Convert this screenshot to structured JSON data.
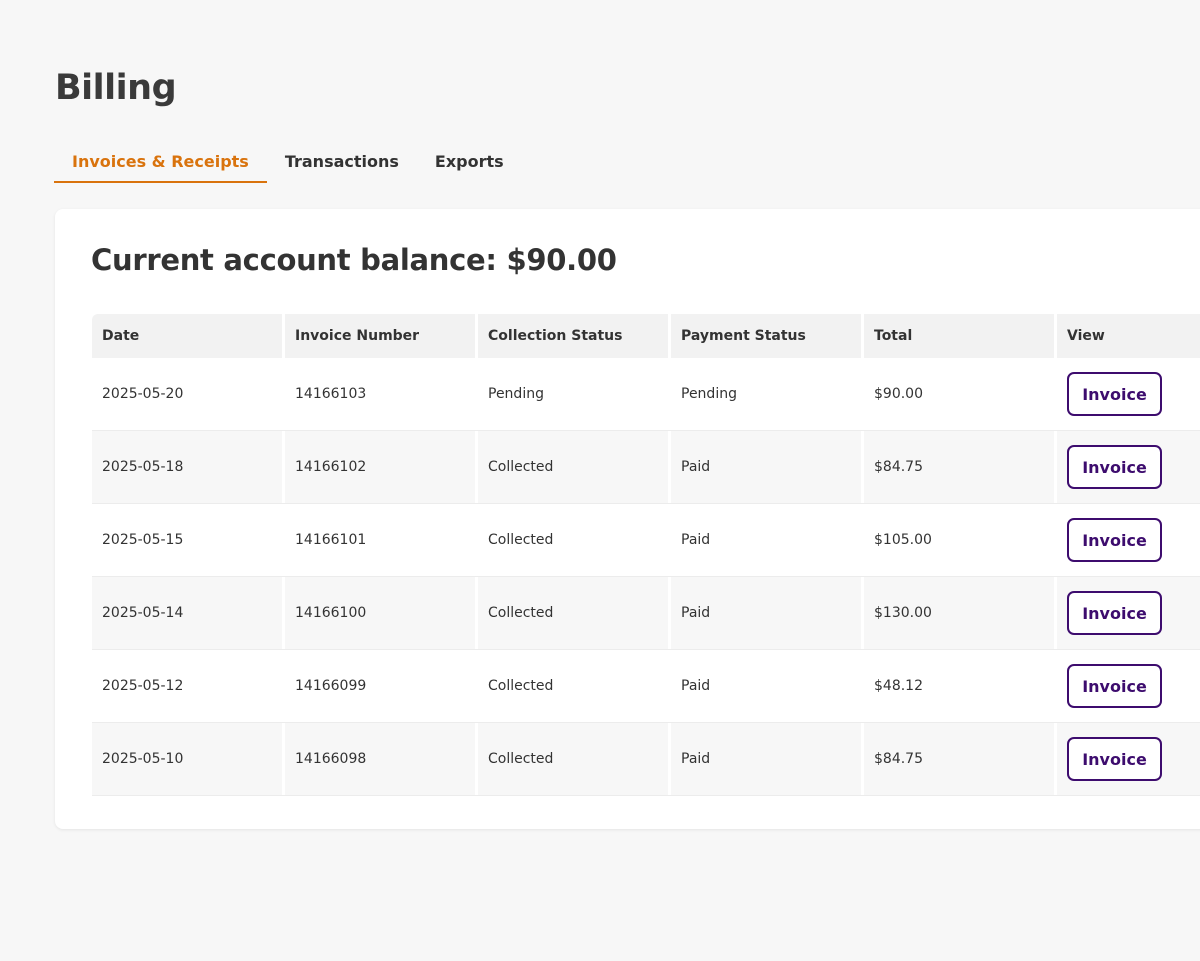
{
  "page": {
    "title": "Billing"
  },
  "tabs": [
    {
      "label": "Invoices & Receipts",
      "active": true
    },
    {
      "label": "Transactions",
      "active": false
    },
    {
      "label": "Exports",
      "active": false
    }
  ],
  "balance": {
    "text": "Current account balance: $90.00"
  },
  "table": {
    "headers": [
      "Date",
      "Invoice Number",
      "Collection Status",
      "Payment Status",
      "Total",
      "View"
    ],
    "rows": [
      {
        "date": "2025-05-20",
        "invoice": "14166103",
        "collection": "Pending",
        "payment": "Pending",
        "total": "$90.00",
        "action": "Invoice"
      },
      {
        "date": "2025-05-18",
        "invoice": "14166102",
        "collection": "Collected",
        "payment": "Paid",
        "total": "$84.75",
        "action": "Invoice"
      },
      {
        "date": "2025-05-15",
        "invoice": "14166101",
        "collection": "Collected",
        "payment": "Paid",
        "total": "$105.00",
        "action": "Invoice"
      },
      {
        "date": "2025-05-14",
        "invoice": "14166100",
        "collection": "Collected",
        "payment": "Paid",
        "total": "$130.00",
        "action": "Invoice"
      },
      {
        "date": "2025-05-12",
        "invoice": "14166099",
        "collection": "Collected",
        "payment": "Paid",
        "total": "$48.12",
        "action": "Invoice"
      },
      {
        "date": "2025-05-10",
        "invoice": "14166098",
        "collection": "Collected",
        "payment": "Paid",
        "total": "$84.75",
        "action": "Invoice"
      }
    ]
  },
  "colors": {
    "accent": "#d9730d",
    "button": "#3d0c6e",
    "background": "#f7f7f7"
  }
}
